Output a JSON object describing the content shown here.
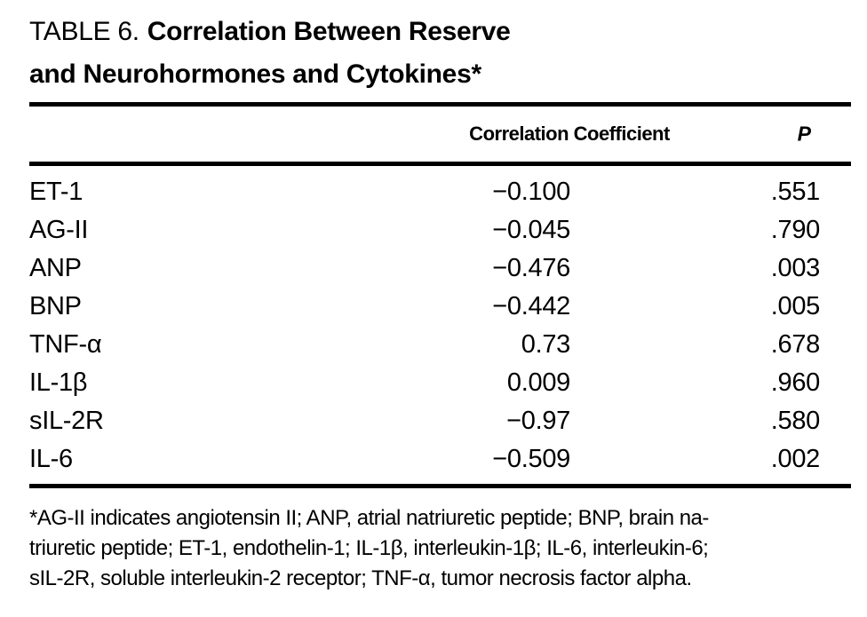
{
  "title": {
    "prefix": "TABLE 6.",
    "line1_bold": "Correlation Between Reserve",
    "line2_bold": "and Neurohormones and Cytokines*"
  },
  "table": {
    "columns": [
      "",
      "Correlation Coefficient",
      "P"
    ],
    "rows": [
      {
        "label": "ET-1",
        "coefficient": "−0.100",
        "p": ".551"
      },
      {
        "label": "AG-II",
        "coefficient": "−0.045",
        "p": ".790"
      },
      {
        "label": "ANP",
        "coefficient": "−0.476",
        "p": ".003"
      },
      {
        "label": "BNP",
        "coefficient": "−0.442",
        "p": ".005"
      },
      {
        "label": "TNF-α",
        "coefficient": "0.73",
        "p": ".678"
      },
      {
        "label": "IL-1β",
        "coefficient": "0.009",
        "p": ".960"
      },
      {
        "label": "sIL-2R",
        "coefficient": "−0.97",
        "p": ".580"
      },
      {
        "label": "IL-6",
        "coefficient": "−0.509",
        "p": ".002"
      }
    ]
  },
  "footnote": {
    "lines": [
      "*AG-II indicates angiotensin II; ANP, atrial natriuretic peptide; BNP, brain na-",
      "triuretic peptide; ET-1, endothelin-1; IL-1β, interleukin-1β; IL-6, interleukin-6;",
      "sIL-2R, soluble interleukin-2 receptor; TNF-α, tumor necrosis factor alpha."
    ]
  },
  "colors": {
    "text": "#000000",
    "background": "#ffffff"
  }
}
